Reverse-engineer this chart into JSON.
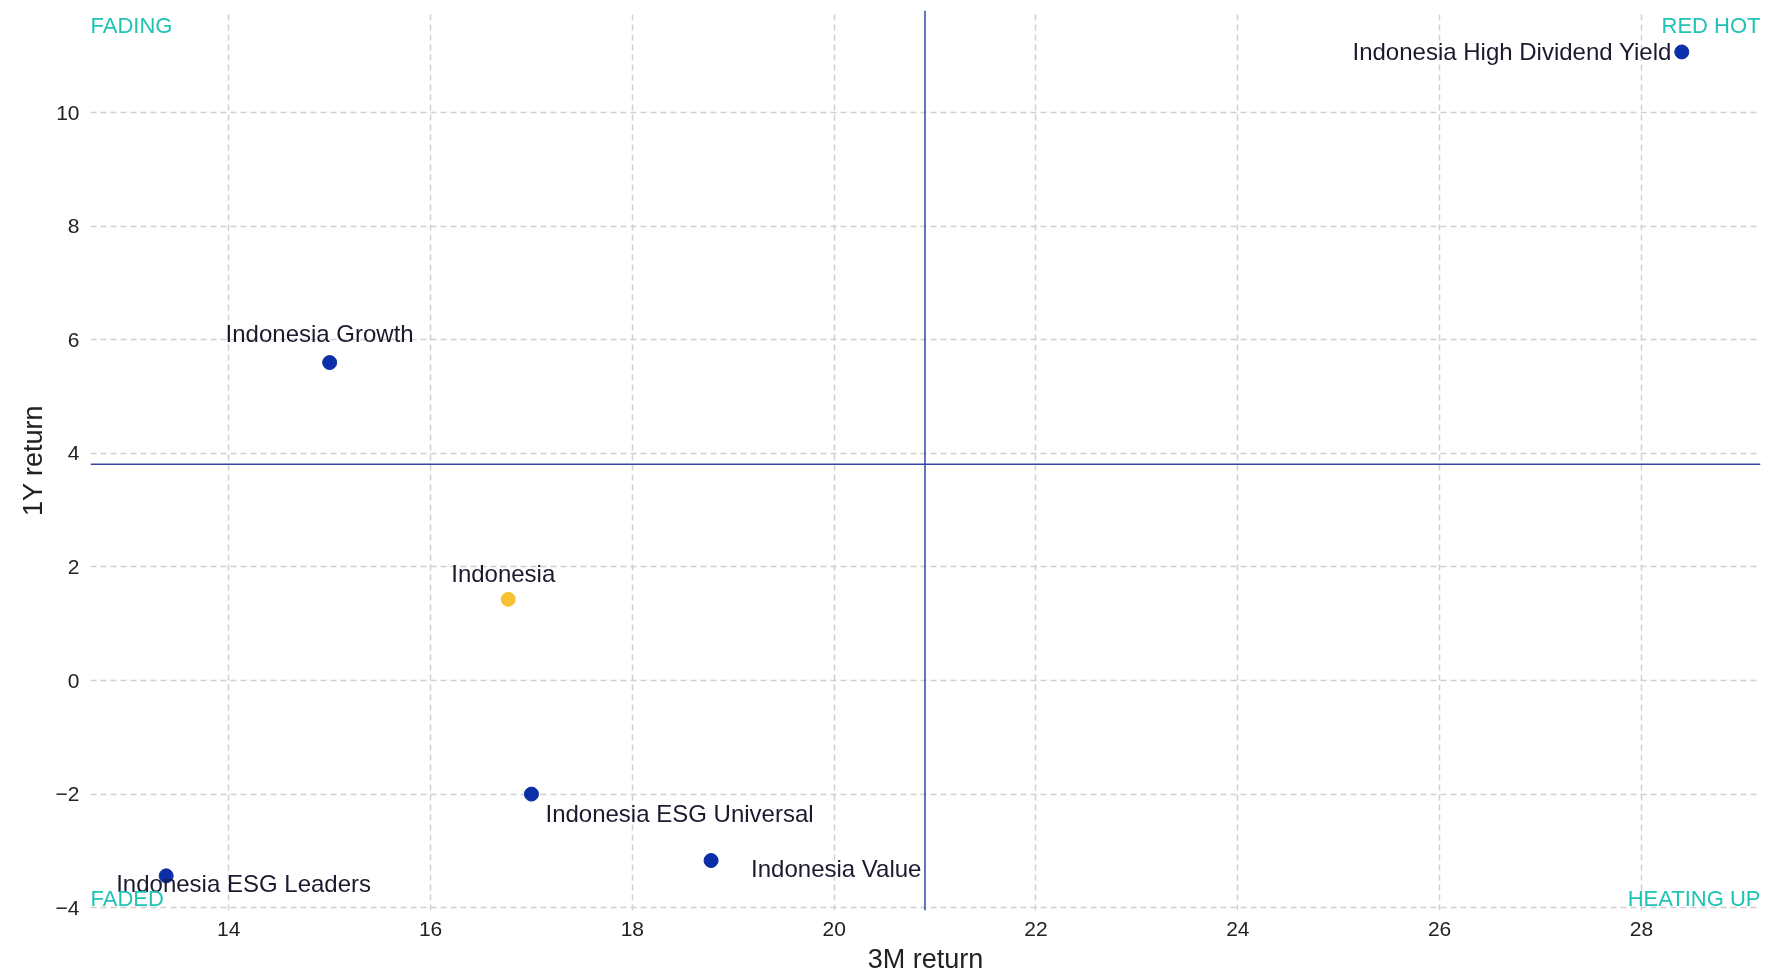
{
  "chart_data": {
    "type": "scatter",
    "xlabel": "3M return",
    "ylabel": "1Y return",
    "xlim": [
      12.63,
      29.18
    ],
    "ylim": [
      -4.05,
      11.8
    ],
    "xticks": [
      14,
      16,
      18,
      20,
      22,
      24,
      26,
      28
    ],
    "yticks": [
      -4,
      -2,
      0,
      2,
      4,
      6,
      8,
      10
    ],
    "grid": true,
    "legend": false,
    "marker": "circle",
    "series": [
      {
        "name": "Indonesia High Dividend Yield",
        "color": "#0b2fa8",
        "x": [
          28.4
        ],
        "values": [
          11.07
        ]
      },
      {
        "name": "Indonesia Growth",
        "color": "#0b2fa8",
        "x": [
          15.0
        ],
        "values": [
          5.6
        ]
      },
      {
        "name": "Indonesia",
        "color": "#f7c232",
        "x": [
          16.77
        ],
        "values": [
          1.43
        ]
      },
      {
        "name": "Indonesia ESG Universal",
        "color": "#0b2fa8",
        "x": [
          17.0
        ],
        "values": [
          -2.0
        ]
      },
      {
        "name": "Indonesia Value",
        "color": "#0b2fa8",
        "x": [
          18.78
        ],
        "values": [
          -3.17
        ]
      },
      {
        "name": "Indonesia ESG Leaders",
        "color": "#0b2fa8",
        "x": [
          13.38
        ],
        "values": [
          -3.44
        ]
      }
    ],
    "ref_lines": [
      {
        "axis": "x",
        "value": 20.9,
        "color": "#3447a8"
      },
      {
        "axis": "y",
        "value": 3.81,
        "color": "#3447a8"
      }
    ],
    "annotations": [
      "FADING",
      "RED HOT",
      "FADED",
      "HEATING UP"
    ]
  }
}
